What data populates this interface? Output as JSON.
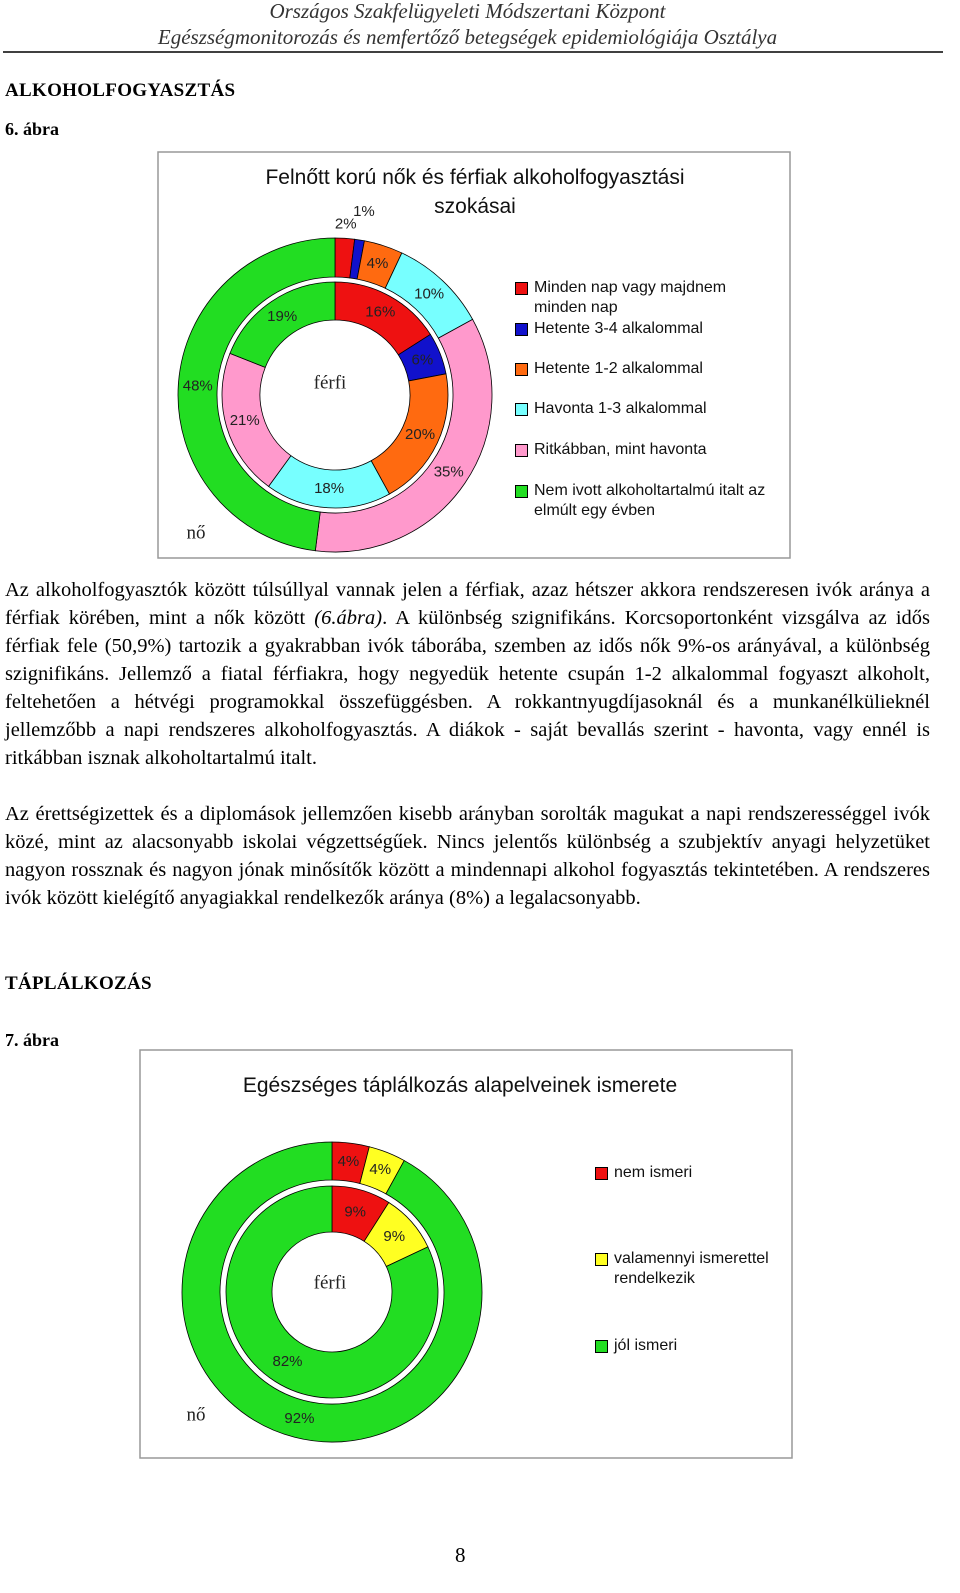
{
  "header": {
    "line1": "Országos Szakfelügyeleti Módszertani Központ",
    "line2": "Egészségmonitorozás és nemfertőző betegségek epidemiológiája Osztálya"
  },
  "section1": {
    "title": "ALKOHOLFOGYASZTÁS",
    "figure_label": "6. ábra"
  },
  "section2": {
    "title": "TÁPLÁLKOZÁS",
    "figure_label": "7. ábra"
  },
  "paragraph1": [
    "Az alkoholfogyasztók között túlsúllyal vannak jelen a férfiak, azaz hétszer akkora rendszeresen ivók aránya a férfiak körében, mint a nők között ",
    "(6.ábra)",
    ". A különbség szignifikáns. Korcsoportonként vizsgálva az idős férfiak fele (50,9%) tartozik a gyakrabban ivók táborába, szemben az idős nők 9%-os arányával, a különbség szignifikáns. Jellemző a fiatal férfiakra, hogy negyedük hetente csupán 1-2 alkalommal fogyaszt alkoholt, feltehetően a hétvégi programokkal összefüggésben. A rokkantnyugdíjasoknál és a munkanélkülieknél jellemzőbb a napi rendszeres alkoholfogyasztás. A diákok - saját bevallás szerint - havonta, vagy ennél is ritkábban isznak alkoholtartalmú italt."
  ],
  "paragraph2": "Az érettségizettek és a diplomások jellemzően kisebb arányban sorolták magukat a napi rendszerességgel ivók közé, mint az alacsonyabb iskolai végzettségűek. Nincs jelentős különbség a szubjektív anyagi helyzetüket nagyon rossznak és nagyon jónak minősítők között a mindennapi alkohol fogyasztás tekintetében. A rendszeres ivók között kielégítő anyagiakkal rendelkezők aránya (8%) a legalacsonyabb.",
  "chart_data": [
    {
      "type": "donut",
      "title": "Felnőtt korú nők és férfiak alkoholfogyasztási szokásai",
      "categories": [
        "Minden nap vagy majdnem minden nap",
        "Hetente 3-4 alkalommal",
        "Hetente 1-2 alkalommal",
        "Havonta 1-3 alkalommal",
        "Ritkábban, mint havonta",
        "Nem ivott alkoholtartalmú italt az elmúlt egy évben"
      ],
      "colors": [
        "#ee1111",
        "#1111cc",
        "#ff6a10",
        "#77ffff",
        "#ff99cc",
        "#22dd22"
      ],
      "series": [
        {
          "name": "nő",
          "values": [
            2,
            1,
            4,
            10,
            35,
            48
          ],
          "value_labels": [
            "2%",
            "1%",
            "4%",
            "10%",
            "35%",
            "48%"
          ]
        },
        {
          "name": "férfi",
          "values": [
            16,
            6,
            20,
            18,
            21,
            19
          ],
          "value_labels": [
            "16%",
            "6%",
            "20%",
            "18%",
            "21%",
            "19%"
          ]
        }
      ]
    },
    {
      "type": "donut",
      "title": "Egészséges táplálkozás alapelveinek ismerete",
      "categories": [
        "nem ismeri",
        "valamennyi ismerettel rendelkezik",
        "jól ismeri"
      ],
      "colors": [
        "#ee1111",
        "#ffff22",
        "#22dd22"
      ],
      "series": [
        {
          "name": "nő",
          "values": [
            4,
            4,
            92
          ],
          "value_labels": [
            "4%",
            "4%",
            "92%"
          ]
        },
        {
          "name": "férfi",
          "values": [
            9,
            9,
            82
          ],
          "value_labels": [
            "9%",
            "9%",
            "82%"
          ]
        }
      ]
    }
  ],
  "page_number": "8"
}
